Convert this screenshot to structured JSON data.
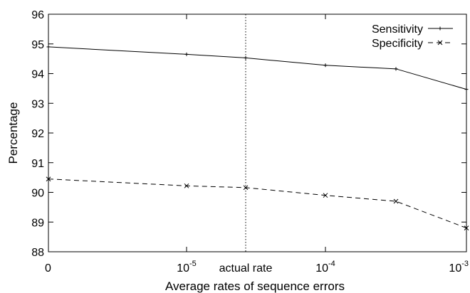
{
  "chart_data": {
    "type": "line",
    "title": "",
    "xlabel": "Average rates of sequence errors",
    "ylabel": "Percentage",
    "ylim": [
      88,
      96
    ],
    "yticks": [
      "88",
      "89",
      "90",
      "91",
      "92",
      "93",
      "94",
      "95",
      "96"
    ],
    "xticks": [
      {
        "base": "0",
        "exp": ""
      },
      {
        "base": "10",
        "exp": "-5"
      },
      {
        "base": "10",
        "exp": "-4"
      },
      {
        "base": "10",
        "exp": "-3"
      }
    ],
    "x_points": [
      "0",
      "1e-5",
      "actual rate",
      "1e-4",
      "2e-4",
      "1e-3"
    ],
    "series": [
      {
        "name": "Sensitivity",
        "style": "solid",
        "marker": "plus",
        "values": [
          94.9,
          94.65,
          94.53,
          94.28,
          94.16,
          93.47
        ]
      },
      {
        "name": "Specificity",
        "style": "dashed",
        "marker": "x",
        "values": [
          90.45,
          90.22,
          90.16,
          89.9,
          89.7,
          88.8
        ]
      }
    ],
    "annotation": {
      "label": "actual rate",
      "style": "dotted"
    },
    "grid": false,
    "legend_position": "top-right"
  },
  "colors": {
    "lines": "#000000",
    "background": "#ffffff"
  }
}
